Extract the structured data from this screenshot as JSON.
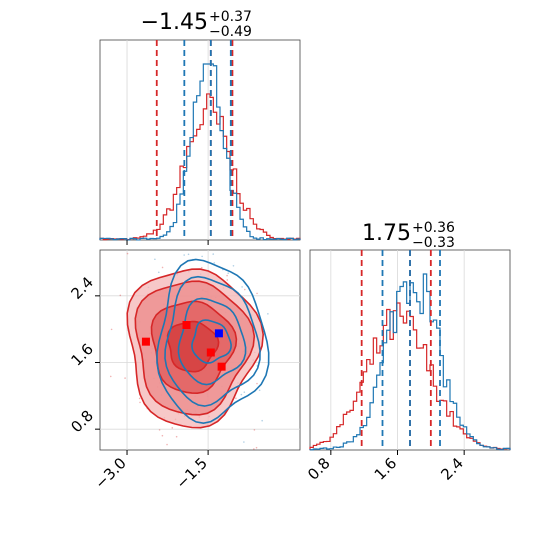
{
  "chart_data": {
    "type": "corner",
    "colors": {
      "series_a": "#1f77b4",
      "series_b": "#d62728",
      "marker_a": "#0000ff",
      "marker_b": "#ff0000"
    },
    "grid": true,
    "parameters": [
      {
        "title": {
          "main": "−1.45",
          "plus": "+0.37",
          "minus": "−0.49"
        },
        "range": [
          -3.5,
          0.2
        ],
        "ticks": [
          {
            "value": -3.0,
            "label": "−3.0"
          },
          {
            "value": -1.5,
            "label": "−1.5"
          }
        ],
        "quantiles": {
          "series_a": [
            -1.94,
            -1.45,
            -1.08
          ],
          "series_b": [
            -2.45,
            -1.45,
            -1.05
          ]
        }
      },
      {
        "title": {
          "main": "1.75",
          "plus": "+0.36",
          "minus": "−0.33"
        },
        "range": [
          0.55,
          2.95
        ],
        "ticks": [
          {
            "value": 0.8,
            "label": "0.8"
          },
          {
            "value": 1.6,
            "label": "1.6"
          },
          {
            "value": 2.4,
            "label": "2.4"
          }
        ],
        "quantiles": {
          "series_a": [
            1.42,
            1.75,
            2.11
          ],
          "series_b": [
            1.17,
            1.75,
            2.0
          ]
        }
      }
    ],
    "histograms": {
      "param_0": {
        "series_a": {
          "mean": -1.5,
          "sd": 0.29,
          "peak": 1.0
        },
        "series_b": {
          "mean": -1.5,
          "sd": 0.42,
          "peak": 0.72
        }
      },
      "param_1": {
        "series_a": {
          "mean": 1.78,
          "sd": 0.3,
          "peak": 1.0
        },
        "series_b": {
          "mean": 1.62,
          "sd": 0.38,
          "peak": 0.72
        }
      }
    },
    "scatter": {
      "markers_a": [
        {
          "x": -1.3,
          "y": 1.95
        }
      ],
      "markers_b": [
        {
          "x": -2.65,
          "y": 1.85
        },
        {
          "x": -1.9,
          "y": 2.05
        },
        {
          "x": -1.45,
          "y": 1.72
        },
        {
          "x": -1.25,
          "y": 1.55
        }
      ],
      "contours_a": {
        "center": {
          "x": -1.45,
          "y": 1.85
        },
        "radius_x": [
          0.35,
          0.6,
          0.85,
          1.0
        ],
        "radius_y": [
          0.25,
          0.5,
          0.75,
          0.95
        ]
      },
      "contours_b": {
        "center": {
          "x": -1.8,
          "y": 1.8
        },
        "radius_x": [
          0.45,
          0.75,
          1.05,
          1.2
        ],
        "radius_y": [
          0.3,
          0.55,
          0.8,
          0.95
        ]
      }
    }
  }
}
